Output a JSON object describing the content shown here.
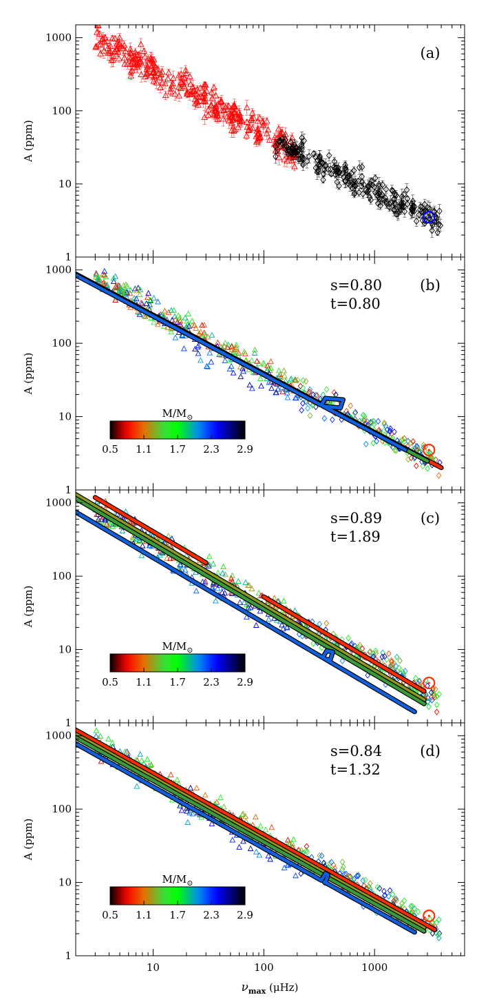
{
  "figure": {
    "xlabel": "ν",
    "xlabel_sub": "max",
    "xlabel_unit": " (μHz)",
    "ylabel": "A (ppm)"
  },
  "chart_data": [
    {
      "type": "scatter",
      "panel_label": "(a)",
      "xscale": "log",
      "yscale": "log",
      "xlim": [
        2,
        6500
      ],
      "ylim": [
        1,
        1500
      ],
      "xticks": [
        10,
        100,
        1000
      ],
      "xtick_labels": [
        "10",
        "100",
        "1000"
      ],
      "yticks": [
        1,
        10,
        100,
        1000
      ],
      "ytick_labels": [
        "1",
        "10",
        "100",
        "1000"
      ],
      "ylabel": "A (ppm)",
      "series": [
        {
          "name": "red giants (triangles)",
          "marker": "triangle",
          "color": "#ff0000",
          "errorbars": true,
          "trend": {
            "x_range": [
              3,
              210
            ],
            "amp_at_nu1": 2500,
            "exponent": -0.85,
            "scatter_dex": 0.1,
            "count": 300
          }
        },
        {
          "name": "main sequence / subgiants (diamonds)",
          "marker": "diamond",
          "color": "#000000",
          "errorbars": true,
          "trend": {
            "x_range": [
              120,
              4000
            ],
            "amp_at_nu1": 1400,
            "exponent": -0.75,
            "scatter_dex": 0.09,
            "count": 230
          }
        },
        {
          "name": "Sun",
          "marker": "sun",
          "color": "#0000ff",
          "x": [
            3100
          ],
          "y": [
            3.5
          ]
        }
      ]
    },
    {
      "type": "scatter",
      "panel_label": "(b)",
      "s_label": "s=0.80",
      "t_label": "t=0.80",
      "xscale": "log",
      "yscale": "log",
      "xlim": [
        2,
        6500
      ],
      "ylim": [
        1,
        1500
      ],
      "xticks": [
        10,
        100,
        1000
      ],
      "xtick_labels": [
        "10",
        "100",
        "1000"
      ],
      "yticks": [
        1,
        10,
        100,
        1000
      ],
      "ytick_labels": [
        "1",
        "10",
        "100",
        "1000"
      ],
      "ylabel": "A (ppm)",
      "colorbar": {
        "label": "M/M",
        "label_sub": "⊙",
        "ticks": [
          "0.5",
          "1.1",
          "1.7",
          "2.3",
          "2.9"
        ],
        "range": [
          0.5,
          2.9
        ]
      },
      "tracks": [
        {
          "mass": 0.5,
          "color": "#ff2a00",
          "x_range": [
            2,
            4000
          ],
          "y_at_2": 880,
          "exponent": -0.8
        },
        {
          "mass": 1.1,
          "color": "#3a9a3a",
          "x_range": [
            2,
            3000
          ],
          "y_at_2": 860,
          "exponent": -0.8
        },
        {
          "mass": 2.3,
          "color": "#1060e0",
          "x_range": [
            2,
            1900
          ],
          "y_at_2": 850,
          "exponent": -0.8,
          "hook": [
            330,
            520
          ]
        }
      ],
      "sun": {
        "x": 3100,
        "y": 3.5,
        "color": "#ff3000"
      }
    },
    {
      "type": "scatter",
      "panel_label": "(c)",
      "s_label": "s=0.89",
      "t_label": "t=1.89",
      "xscale": "log",
      "yscale": "log",
      "xlim": [
        2,
        6500
      ],
      "ylim": [
        1,
        1500
      ],
      "xticks": [
        10,
        100,
        1000
      ],
      "xtick_labels": [
        "10",
        "100",
        "1000"
      ],
      "yticks": [
        1,
        10,
        100,
        1000
      ],
      "ytick_labels": [
        "1",
        "10",
        "100",
        "1000"
      ],
      "ylabel": "A (ppm)",
      "colorbar": {
        "label": "M/M",
        "label_sub": "⊙",
        "ticks": [
          "0.5",
          "1.1",
          "1.7",
          "2.3",
          "2.9"
        ],
        "range": [
          0.5,
          2.9
        ]
      },
      "tracks": [
        {
          "mass": 0.5,
          "color": "#ff2a00",
          "x_range": [
            3,
            30
          ],
          "y_at_2": 1700,
          "exponent": -0.89
        },
        {
          "mass": 0.5,
          "color": "#ff2a00",
          "x_range": [
            100,
            2800
          ],
          "y_at_2": 1700,
          "exponent": -0.89
        },
        {
          "mass": 1.1,
          "color": "#8a9a20",
          "x_range": [
            2,
            2800
          ],
          "y_at_2": 1300,
          "exponent": -0.89
        },
        {
          "mass": 1.5,
          "color": "#3a9a3a",
          "x_range": [
            2,
            2800
          ],
          "y_at_2": 1150,
          "exponent": -0.89
        },
        {
          "mass": 2.3,
          "color": "#1060e0",
          "x_range": [
            2,
            2300
          ],
          "y_at_2": 750,
          "exponent": -0.89,
          "hook": [
            340,
            420
          ]
        }
      ],
      "sun": {
        "x": 3100,
        "y": 3.5,
        "color": "#ff3000"
      }
    },
    {
      "type": "scatter",
      "panel_label": "(d)",
      "s_label": "s=0.84",
      "t_label": "t=1.32",
      "xscale": "log",
      "yscale": "log",
      "xlim": [
        2,
        6500
      ],
      "ylim": [
        1,
        1500
      ],
      "xticks": [
        10,
        100,
        1000
      ],
      "xtick_labels": [
        "10",
        "100",
        "1000"
      ],
      "yticks": [
        1,
        10,
        100,
        1000
      ],
      "ytick_labels": [
        "1",
        "10",
        "100",
        "1000"
      ],
      "ylabel": "A (ppm)",
      "colorbar": {
        "label": "M/M",
        "label_sub": "⊙",
        "ticks": [
          "0.5",
          "1.1",
          "1.7",
          "2.3",
          "2.9"
        ],
        "range": [
          0.5,
          2.9
        ]
      },
      "tracks": [
        {
          "mass": 0.5,
          "color": "#ff2a00",
          "x_range": [
            2,
            3500
          ],
          "y_at_2": 1200,
          "exponent": -0.84
        },
        {
          "mass": 1.1,
          "color": "#8a9a20",
          "x_range": [
            2,
            2800
          ],
          "y_at_2": 1050,
          "exponent": -0.84
        },
        {
          "mass": 1.5,
          "color": "#3a9a3a",
          "x_range": [
            2,
            2800
          ],
          "y_at_2": 950,
          "exponent": -0.84
        },
        {
          "mass": 2.3,
          "color": "#1060e0",
          "x_range": [
            2,
            2300
          ],
          "y_at_2": 780,
          "exponent": -0.84,
          "hook": [
            330,
            380
          ]
        }
      ],
      "sun": {
        "x": 3100,
        "y": 3.5,
        "color": "#ff3000"
      }
    }
  ]
}
